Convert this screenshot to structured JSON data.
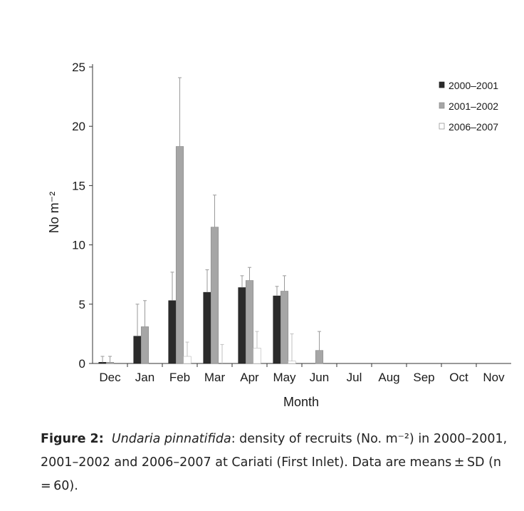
{
  "chart_data": {
    "type": "bar",
    "categories": [
      "Dec",
      "Jan",
      "Feb",
      "Mar",
      "Apr",
      "May",
      "Jun",
      "Jul",
      "Aug",
      "Sep",
      "Oct",
      "Nov"
    ],
    "series": [
      {
        "name": "2000–2001",
        "color": "#2b2b2b",
        "values": [
          0.1,
          2.3,
          5.3,
          6.0,
          6.4,
          5.7,
          0,
          0,
          0,
          0,
          0,
          0
        ],
        "sd": [
          0.5,
          2.7,
          2.4,
          1.9,
          1.0,
          0.8,
          0,
          0,
          0,
          0,
          0,
          0
        ]
      },
      {
        "name": "2001–2002",
        "color": "#a6a6a6",
        "values": [
          0.1,
          3.1,
          18.3,
          11.5,
          7.0,
          6.1,
          1.1,
          0,
          0,
          0,
          0,
          0
        ],
        "sd": [
          0.5,
          2.2,
          5.8,
          2.7,
          1.1,
          1.3,
          1.6,
          0,
          0,
          0,
          0,
          0
        ]
      },
      {
        "name": "2006–2007",
        "color": "#ffffff",
        "values": [
          0,
          0,
          0.6,
          0,
          1.3,
          0.2,
          0,
          0,
          0,
          0,
          0,
          0
        ],
        "sd": [
          0,
          0,
          1.2,
          1.6,
          1.4,
          2.3,
          0,
          0,
          0,
          0,
          0,
          0
        ]
      }
    ],
    "title": "",
    "xlabel": "Month",
    "ylabel": "No m⁻²",
    "ylim": [
      0,
      25
    ],
    "yticks": [
      0,
      5,
      10,
      15,
      20,
      25
    ],
    "grid": false,
    "legend_position": "top-right"
  },
  "caption": {
    "label": "Figure 2:",
    "species": "Undaria pinnatifida",
    "text": ": density of recruits (No. m⁻²) in 2000–2001, 2001–2002 and 2006–2007 at Cariati (First Inlet). Data are means ± SD (n = 60)."
  }
}
